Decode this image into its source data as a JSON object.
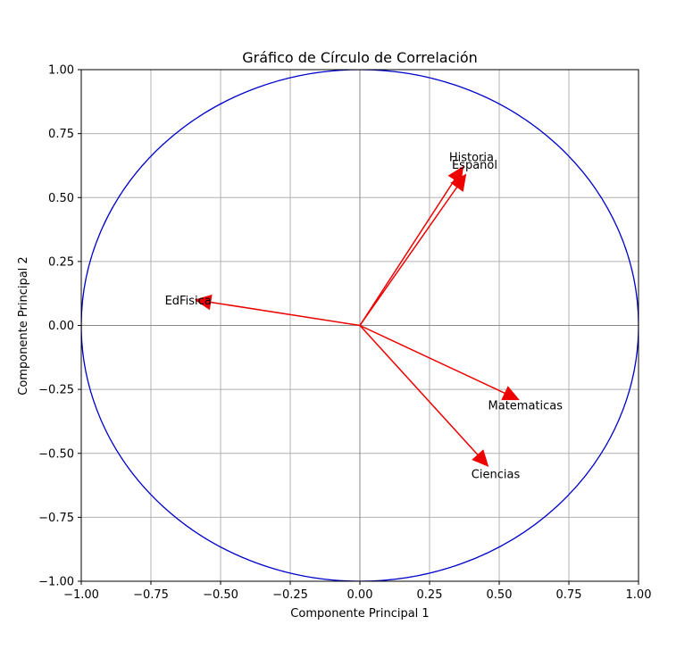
{
  "chart_data": {
    "type": "scatter",
    "title": "Gráfico de Círculo de Correlación",
    "xlabel": "Componente Principal 1",
    "ylabel": "Componente Principal 2",
    "xlim": [
      -1.0,
      1.0
    ],
    "ylim": [
      -1.0,
      1.0
    ],
    "xticks": [
      -1.0,
      -0.75,
      -0.5,
      -0.25,
      0.0,
      0.25,
      0.5,
      0.75,
      1.0
    ],
    "yticks": [
      -1.0,
      -0.75,
      -0.5,
      -0.25,
      0.0,
      0.25,
      0.5,
      0.75,
      1.0
    ],
    "xtick_labels": [
      "−1.00",
      "−0.75",
      "−0.50",
      "−0.25",
      "0.00",
      "0.25",
      "0.50",
      "0.75",
      "1.00"
    ],
    "ytick_labels": [
      "−1.00",
      "−0.75",
      "−0.50",
      "−0.25",
      "0.00",
      "0.25",
      "0.50",
      "0.75",
      "1.00"
    ],
    "grid": true,
    "unit_circle": {
      "radius": 1.0,
      "color": "#0000cc"
    },
    "arrow_color": "#ee0000",
    "vectors": [
      {
        "name": "Historia",
        "x": 0.37,
        "y": 0.62,
        "label_x": 0.32,
        "label_y": 0.66
      },
      {
        "name": "Español",
        "x": 0.38,
        "y": 0.59,
        "label_x": 0.33,
        "label_y": 0.63
      },
      {
        "name": "EdFisica",
        "x": -0.59,
        "y": 0.1,
        "label_x": -0.7,
        "label_y": 0.1
      },
      {
        "name": "Matematicas",
        "x": 0.57,
        "y": -0.29,
        "label_x": 0.46,
        "label_y": -0.31
      },
      {
        "name": "Ciencias",
        "x": 0.46,
        "y": -0.55,
        "label_x": 0.4,
        "label_y": -0.58
      }
    ]
  }
}
